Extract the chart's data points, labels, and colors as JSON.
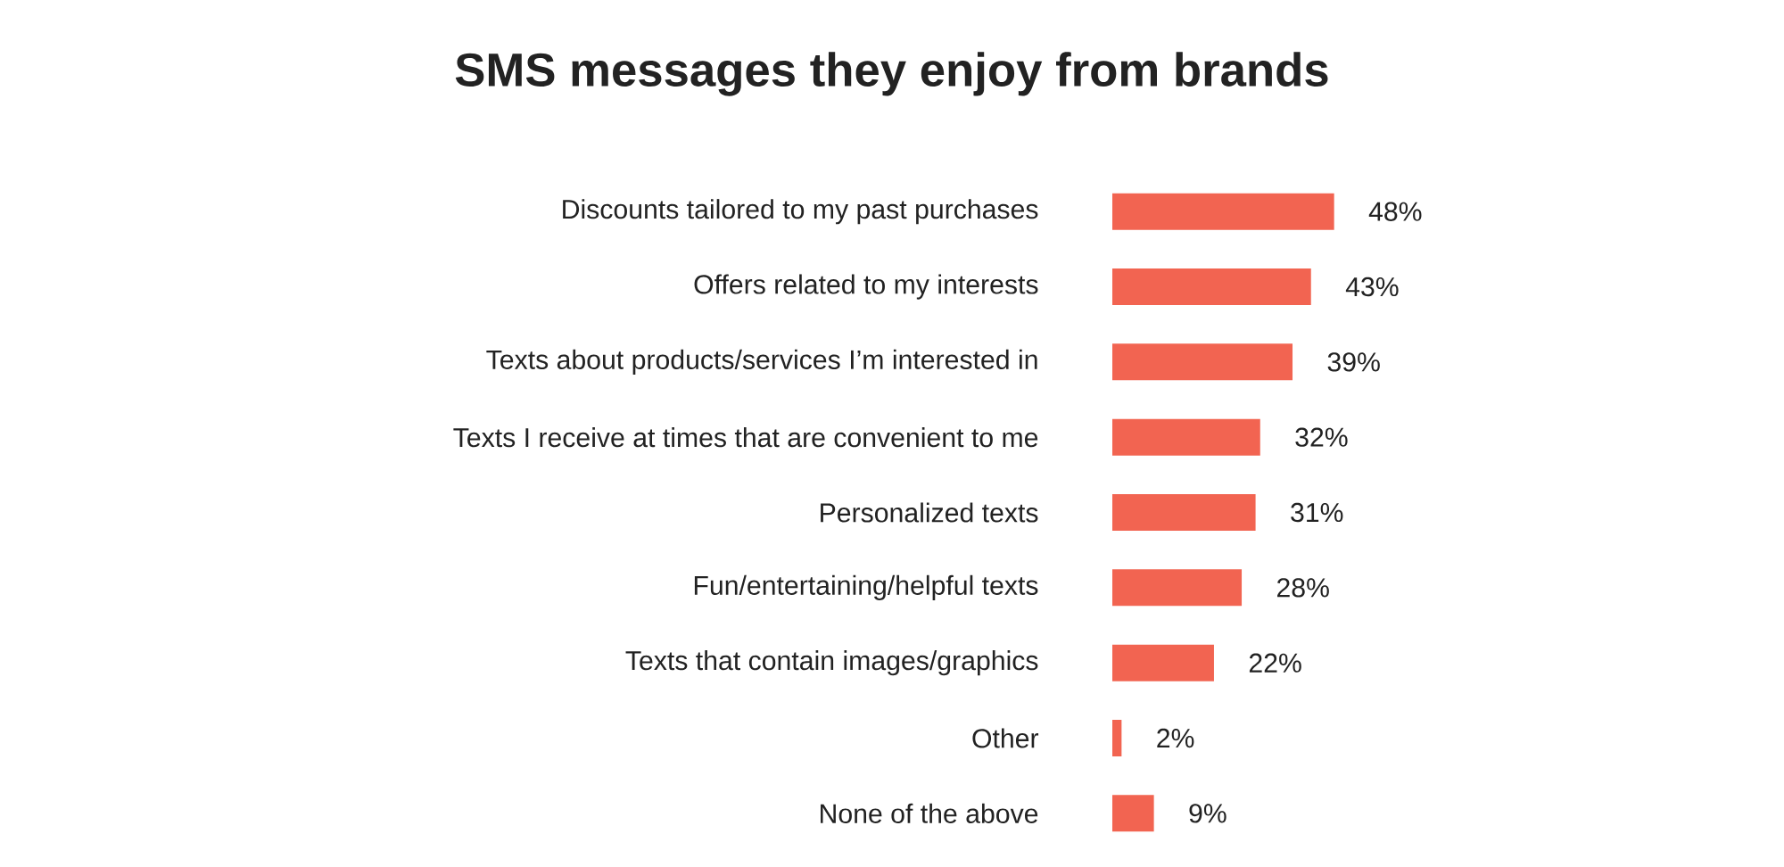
{
  "chart_data": {
    "type": "bar",
    "orientation": "horizontal",
    "title": "SMS messages they enjoy from brands",
    "categories": [
      "Discounts tailored to my past purchases",
      "Offers related to my interests",
      "Texts about products/services I’m interested in",
      "Texts I receive at times that are convenient to me",
      "Personalized texts",
      "Fun/entertaining/helpful texts",
      "Texts that contain images/graphics",
      "Other",
      "None of the above"
    ],
    "values": [
      48,
      43,
      39,
      32,
      31,
      28,
      22,
      2,
      9
    ],
    "value_labels": [
      "48%",
      "43%",
      "39%",
      "32%",
      "31%",
      "28%",
      "22%",
      "2%",
      "9%"
    ],
    "color": "#f26451"
  }
}
